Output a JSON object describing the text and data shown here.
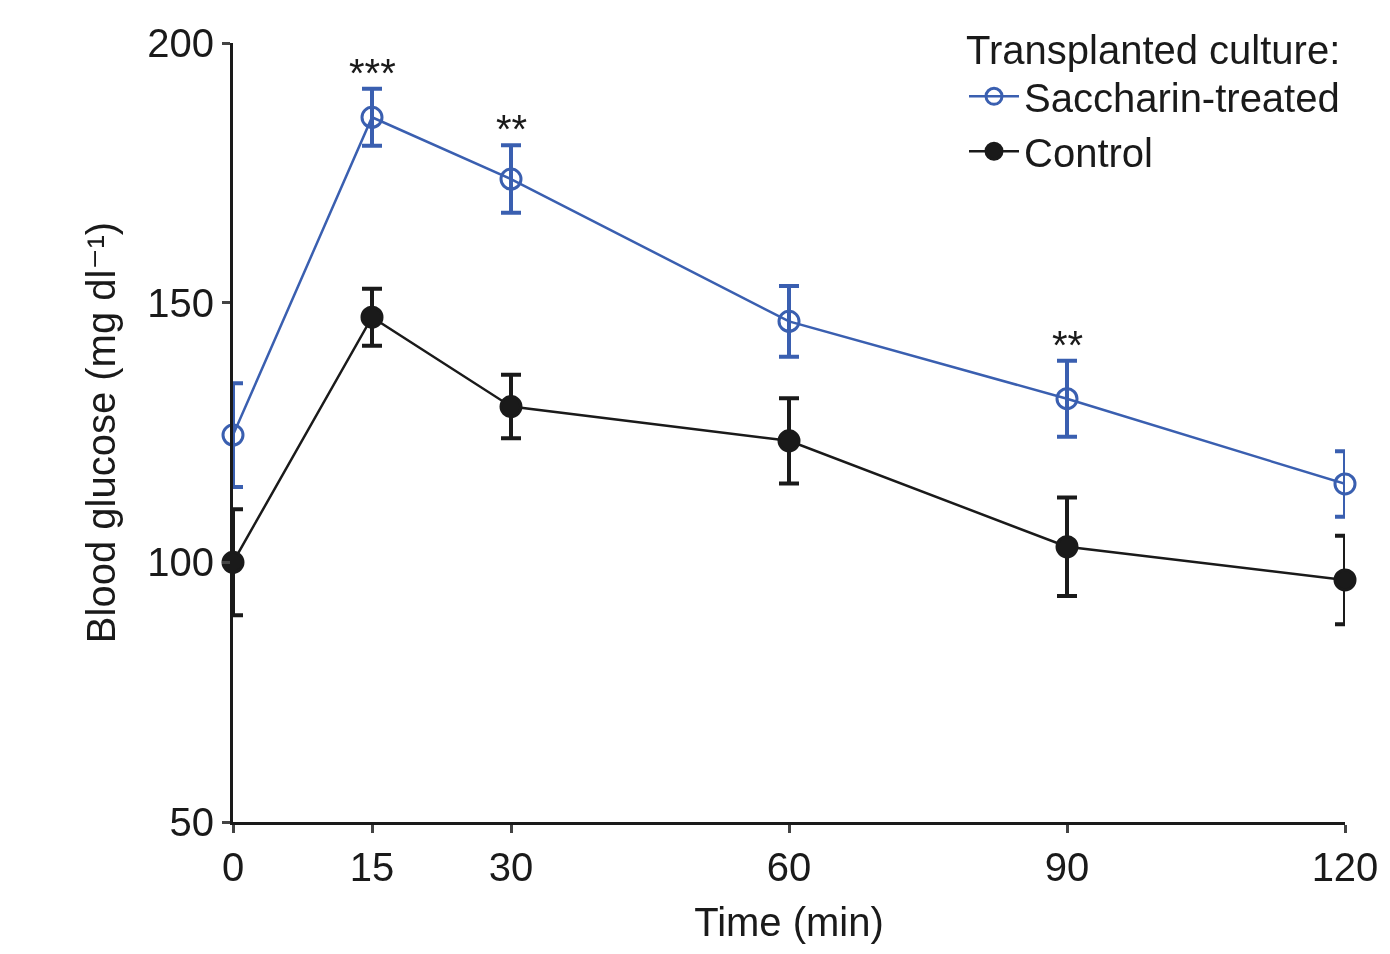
{
  "chart_data": {
    "type": "line",
    "xlabel": "Time (min)",
    "ylabel": "Blood glucose (mg dl⁻¹)",
    "legend_title": "Transplanted culture:",
    "x": [
      0,
      15,
      30,
      60,
      90,
      120
    ],
    "series": [
      {
        "name": "Saccharin-treated",
        "color": "#3a5fb0",
        "marker": "circle-open",
        "values": [
          124.5,
          185.7,
          173.8,
          146.4,
          131.5,
          115.1
        ],
        "errors": [
          10,
          5.5,
          6.5,
          6.8,
          7.3,
          6.3
        ]
      },
      {
        "name": "Control",
        "color": "#1a1a1a",
        "marker": "circle",
        "values": [
          100,
          147.2,
          130,
          123.4,
          103,
          96.6
        ],
        "errors": [
          10.2,
          5.5,
          6.1,
          8.2,
          9.5,
          8.5
        ]
      }
    ],
    "annotations": [
      {
        "text": "***",
        "x": 15,
        "y": 185.7
      },
      {
        "text": "**",
        "x": 30,
        "y": 173.8
      },
      {
        "text": "**",
        "x": 90,
        "y": 131.5
      }
    ],
    "xlim": [
      0,
      120
    ],
    "xticks": [
      0,
      15,
      30,
      60,
      90,
      120
    ],
    "ylim": [
      50,
      200
    ],
    "yticks": [
      50,
      100,
      150,
      200
    ],
    "grid": false,
    "legend": "top right",
    "line_style": "solid"
  }
}
